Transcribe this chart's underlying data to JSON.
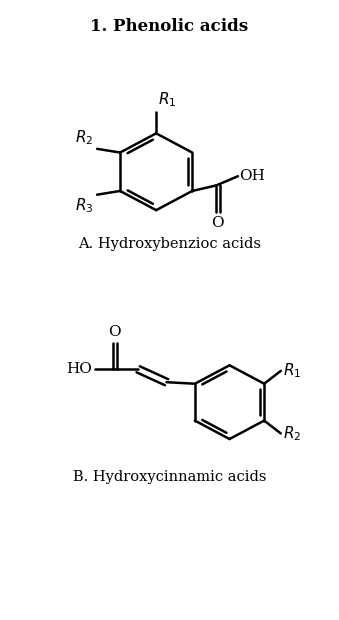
{
  "title": "1. Phenolic acids",
  "title_fontsize": 12,
  "title_weight": "bold",
  "label_A": "A. Hydroxybenzioc acids",
  "label_B": "B. Hydroxycinnamic acids",
  "label_fontsize": 10.5,
  "bg_color": "#ffffff",
  "line_color": "#000000",
  "line_width": 1.8,
  "text_fontsize": 11,
  "sub_fontsize": 8
}
